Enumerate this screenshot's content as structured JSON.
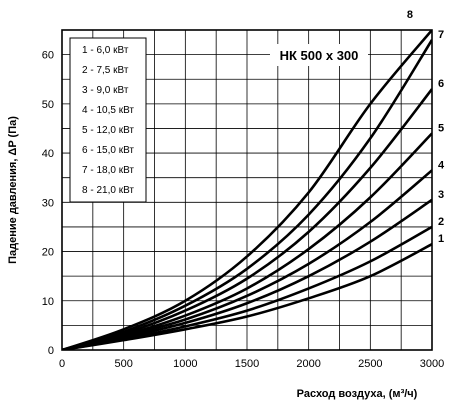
{
  "chart_data": {
    "type": "line",
    "title": "НК 500 x 300",
    "xlabel": "Расход воздуха, (м³/ч)",
    "ylabel": "Падение давления, ΔP (Па)",
    "xlim": [
      0,
      3000
    ],
    "ylim": [
      0,
      65
    ],
    "x_ticks": [
      "0",
      "500",
      "1000",
      "1500",
      "2000",
      "2500",
      "3000"
    ],
    "y_ticks": [
      "0",
      "10",
      "20",
      "30",
      "40",
      "50",
      "60"
    ],
    "grid": true,
    "legend_position": "top-left",
    "x": [
      0,
      500,
      1000,
      1500,
      2000,
      2500,
      3000
    ],
    "series": [
      {
        "name": "1 - 6,0 кВт",
        "label": "1",
        "values": [
          0,
          2.0,
          4.2,
          6.8,
          10.5,
          15.0,
          21.5
        ]
      },
      {
        "name": "2 - 7,5 кВт",
        "label": "2",
        "values": [
          0,
          2.2,
          4.8,
          8.0,
          12.5,
          18.0,
          25.0
        ]
      },
      {
        "name": "3 - 9,0 кВт",
        "label": "3",
        "values": [
          0,
          2.5,
          5.5,
          9.5,
          15.0,
          22.0,
          30.5
        ]
      },
      {
        "name": "4 - 10,5 кВт",
        "label": "4",
        "values": [
          0,
          2.8,
          6.2,
          11.0,
          17.5,
          26.0,
          36.5
        ]
      },
      {
        "name": "5 - 12,0 кВт",
        "label": "5",
        "values": [
          0,
          3.0,
          7.0,
          12.5,
          20.5,
          31.0,
          44.0
        ]
      },
      {
        "name": "6 - 15,0 кВт",
        "label": "6",
        "values": [
          0,
          3.3,
          8.0,
          14.5,
          24.0,
          37.0,
          53.0
        ]
      },
      {
        "name": "7 - 18,0 кВт",
        "label": "7",
        "values": [
          0,
          3.7,
          9.0,
          16.5,
          27.5,
          43.0,
          63.0
        ]
      },
      {
        "name": "8 - 21,0 кВт",
        "label": "8",
        "values": [
          0,
          4.2,
          10.0,
          19.0,
          32.0,
          50.0,
          65.0
        ]
      }
    ]
  }
}
